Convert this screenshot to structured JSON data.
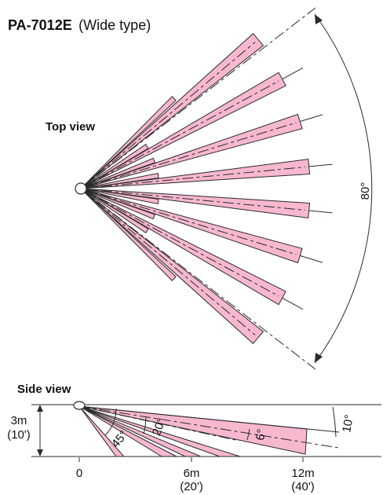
{
  "title": {
    "model": "PA-7012E",
    "type": "(Wide type)"
  },
  "top_view": {
    "label": "Top view",
    "angle_label": "80°",
    "beam_angles_deg": [
      -40,
      -28.5,
      -17,
      -5.5,
      5.5,
      17,
      28.5,
      40
    ]
  },
  "side_view": {
    "label": "Side view",
    "height_label_1": "3m",
    "height_label_2": "(10')",
    "angles": [
      "45°",
      "20°",
      "6°",
      "10°"
    ],
    "ticks": [
      {
        "m": "0",
        "ft": ""
      },
      {
        "m": "6m",
        "ft": "(20')"
      },
      {
        "m": "12m",
        "ft": "(40')"
      }
    ]
  },
  "colors": {
    "beam_fill": "#f7b8cf",
    "line": "#2a2a2a"
  }
}
